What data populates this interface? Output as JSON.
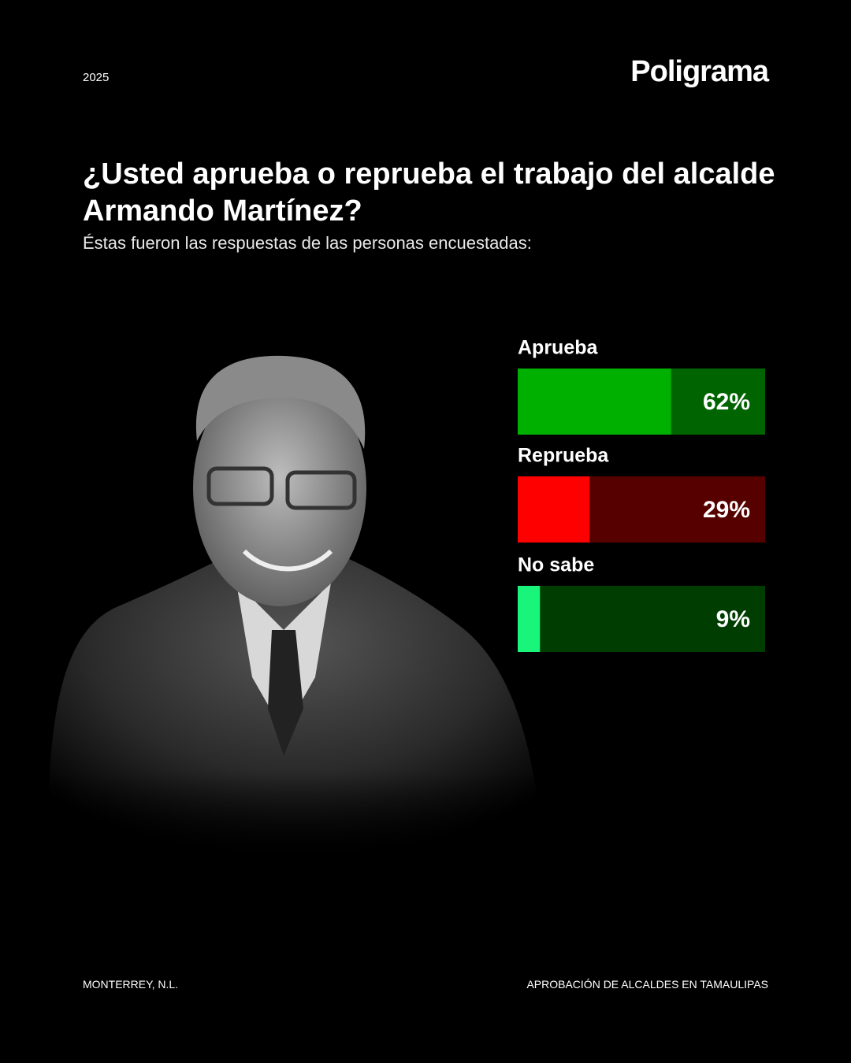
{
  "header": {
    "year": "2025",
    "brand": "Poligrama"
  },
  "chart_data": {
    "type": "bar",
    "title": "¿Usted aprueba o reprueba el trabajo del alcalde Armando Martínez?",
    "subtitle": "Éstas fueron las respuestas de las personas encuestadas:",
    "categories": [
      "Aprueba",
      "Reprueba",
      "No sabe"
    ],
    "values": [
      62,
      29,
      9
    ],
    "value_labels": [
      "62%",
      "29%",
      "9%"
    ],
    "colors": [
      "#00b000",
      "#ff0000",
      "#19f57a"
    ],
    "track_colors": [
      "#006400",
      "#560000",
      "#003d00"
    ],
    "xlim": [
      0,
      100
    ]
  },
  "footer": {
    "location": "MONTERREY, N.L.",
    "series_name": "APROBACIÓN DE ALCALDES EN TAMAULIPAS"
  }
}
